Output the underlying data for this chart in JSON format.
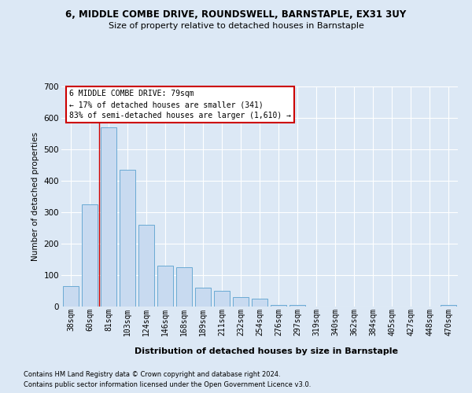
{
  "title1": "6, MIDDLE COMBE DRIVE, ROUNDSWELL, BARNSTAPLE, EX31 3UY",
  "title2": "Size of property relative to detached houses in Barnstaple",
  "xlabel": "Distribution of detached houses by size in Barnstaple",
  "ylabel": "Number of detached properties",
  "categories": [
    "38sqm",
    "60sqm",
    "81sqm",
    "103sqm",
    "124sqm",
    "146sqm",
    "168sqm",
    "189sqm",
    "211sqm",
    "232sqm",
    "254sqm",
    "276sqm",
    "297sqm",
    "319sqm",
    "340sqm",
    "362sqm",
    "384sqm",
    "405sqm",
    "427sqm",
    "448sqm",
    "470sqm"
  ],
  "values": [
    65,
    325,
    570,
    435,
    260,
    130,
    125,
    60,
    50,
    30,
    25,
    5,
    5,
    0,
    0,
    0,
    0,
    0,
    0,
    0,
    5
  ],
  "bar_color": "#c8daf0",
  "bar_edge_color": "#6aaad4",
  "bg_color": "#dce8f5",
  "grid_color": "#ffffff",
  "vline_color": "#cc0000",
  "ann_line1": "6 MIDDLE COMBE DRIVE: 79sqm",
  "ann_line2": "← 17% of detached houses are smaller (341)",
  "ann_line3": "83% of semi-detached houses are larger (1,610) →",
  "ann_box_fc": "#ffffff",
  "ann_box_ec": "#cc0000",
  "footnote1": "Contains HM Land Registry data © Crown copyright and database right 2024.",
  "footnote2": "Contains public sector information licensed under the Open Government Licence v3.0.",
  "ylim": [
    0,
    700
  ],
  "yticks": [
    0,
    100,
    200,
    300,
    400,
    500,
    600,
    700
  ]
}
